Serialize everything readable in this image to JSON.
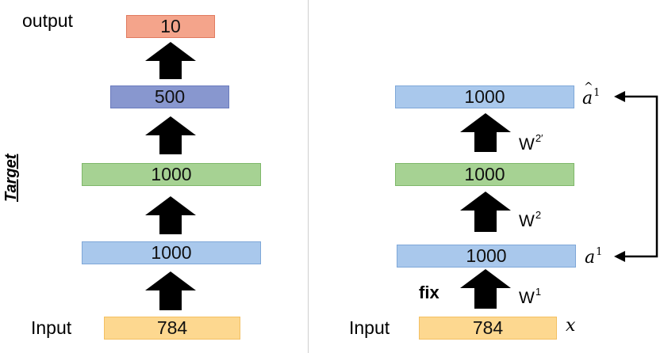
{
  "left_network": {
    "output_label": "output",
    "input_label": "Input",
    "target_label": "Target",
    "layers": [
      {
        "value": "10",
        "fill": "#f4a48b",
        "stroke": "#e07a5f"
      },
      {
        "value": "500",
        "fill": "#8897cf",
        "stroke": "#6a7bbd"
      },
      {
        "value": "1000",
        "fill": "#a6d293",
        "stroke": "#7fb86a"
      },
      {
        "value": "1000",
        "fill": "#a9c8ec",
        "stroke": "#7ea7d8"
      },
      {
        "value": "784",
        "fill": "#fdd890",
        "stroke": "#f3c063"
      }
    ]
  },
  "right_network": {
    "input_label": "Input",
    "fix_label": "fix",
    "x_label": "x",
    "a_hat_label": "a",
    "a_hat_sup": "1",
    "a_label": "a",
    "a_sup": "1",
    "w1_base": "W",
    "w1_sup": "1",
    "w2_base": "W",
    "w2_sup": "2",
    "w2p_base": "W",
    "w2p_sup": "2′",
    "layers": [
      {
        "value": "1000",
        "fill": "#a9c8ec",
        "stroke": "#7ea7d8"
      },
      {
        "value": "1000",
        "fill": "#a6d293",
        "stroke": "#7fb86a"
      },
      {
        "value": "1000",
        "fill": "#a9c8ec",
        "stroke": "#7ea7d8"
      },
      {
        "value": "784",
        "fill": "#fdd890",
        "stroke": "#f3c063"
      }
    ]
  }
}
